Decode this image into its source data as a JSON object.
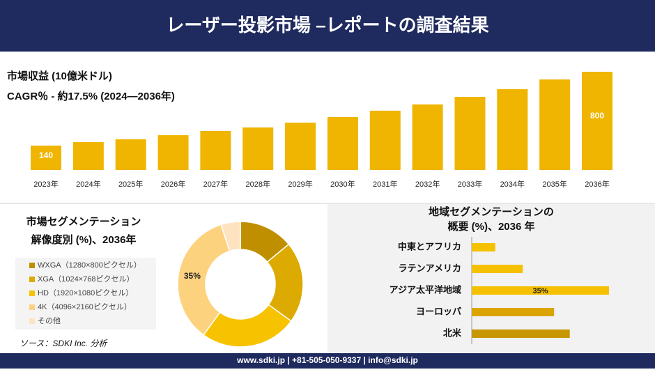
{
  "header": {
    "title": "レーザー投影市場 –レポートの調査結果"
  },
  "chart_data": [
    {
      "type": "bar",
      "title": "市場収益 (10億米ドル)",
      "subtitle": "CAGR％ - 約17.5% (2024—2036年)",
      "categories": [
        "2023年",
        "2024年",
        "2025年",
        "2026年",
        "2027年",
        "2028年",
        "2029年",
        "2030年",
        "2031年",
        "2032年",
        "2033年",
        "2034年",
        "2035年",
        "2036年"
      ],
      "values": [
        140,
        171,
        196,
        233,
        271,
        302,
        345,
        395,
        452,
        508,
        576,
        644,
        731,
        800
      ],
      "color": "#efb500"
    },
    {
      "type": "donut",
      "title": "市場セグメンテーション",
      "subtitle": "解像度別 (%)、2036年",
      "categories": [
        "WXGA（1280×800ピクセル）",
        "XGA（1024×768ピクセル）",
        "HD（1920×1080ピクセル）",
        "4K（4096×2160ピクセル）",
        "その他"
      ],
      "values": [
        14,
        21,
        25,
        35,
        5
      ],
      "value_labels": [
        null,
        null,
        null,
        "35%",
        null
      ],
      "colors": [
        "#bf8f00",
        "#dcaa00",
        "#f7c200",
        "#fdd27e",
        "#fde3c0"
      ]
    },
    {
      "type": "hbar",
      "title": "地域セグメンテーションの",
      "subtitle": "概要 (%)、2036 年",
      "categories": [
        "中東とアフリカ",
        "ラテンアメリカ",
        "アジア太平洋地域",
        "ヨーロッパ",
        "北米"
      ],
      "values": [
        6,
        13,
        35,
        21,
        25
      ],
      "value_labels": [
        null,
        null,
        "35%",
        null,
        null
      ],
      "colors": [
        "#f5c000",
        "#f5c000",
        "#f5c000",
        "#dba400",
        "#c89600"
      ]
    }
  ],
  "source": "ソース：SDKI Inc. 分析",
  "footer": "www.sdki.jp | +81-505-050-9337 | info@sdki.jp"
}
